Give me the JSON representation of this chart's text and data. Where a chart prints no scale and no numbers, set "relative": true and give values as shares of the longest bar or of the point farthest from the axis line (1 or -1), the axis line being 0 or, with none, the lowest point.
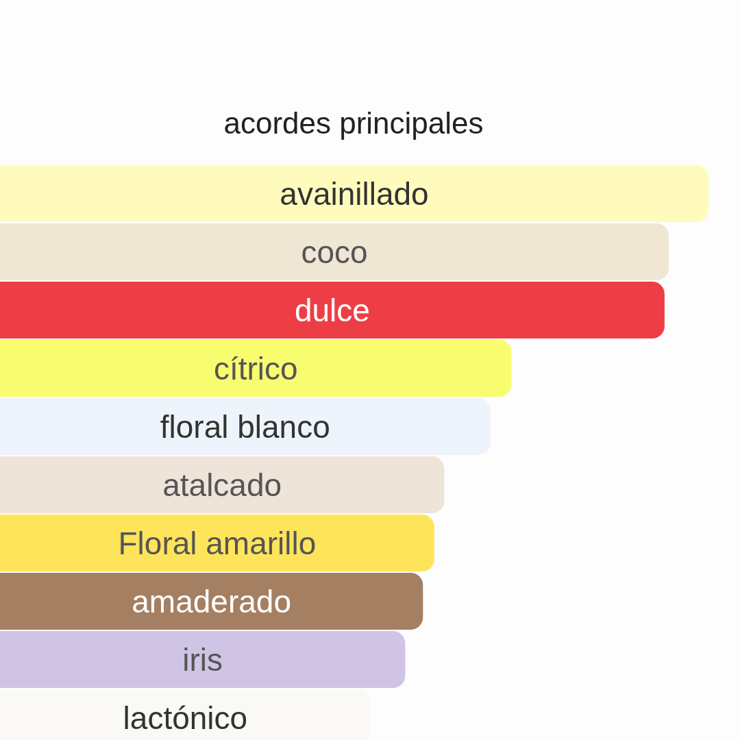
{
  "chart_data": {
    "type": "bar",
    "orientation": "horizontal",
    "relative": true,
    "title": "acordes principales",
    "categories": [
      "avainillado",
      "coco",
      "dulce",
      "cítrico",
      "floral blanco",
      "atalcado",
      "Floral amarillo",
      "amaderado",
      "iris",
      "lactónico"
    ],
    "values": [
      1,
      0.944,
      0.938,
      0.722,
      0.692,
      0.627,
      0.613,
      0.597,
      0.572,
      0.523
    ],
    "colors": [
      "#fffbbd",
      "#f0e6d4",
      "#ee3e45",
      "#f8fc6f",
      "#eef4fb",
      "#efe4d9",
      "#fee45b",
      "#a47f62",
      "#d0c4e4",
      "#faf9f5"
    ],
    "legend": false,
    "grid": false
  }
}
